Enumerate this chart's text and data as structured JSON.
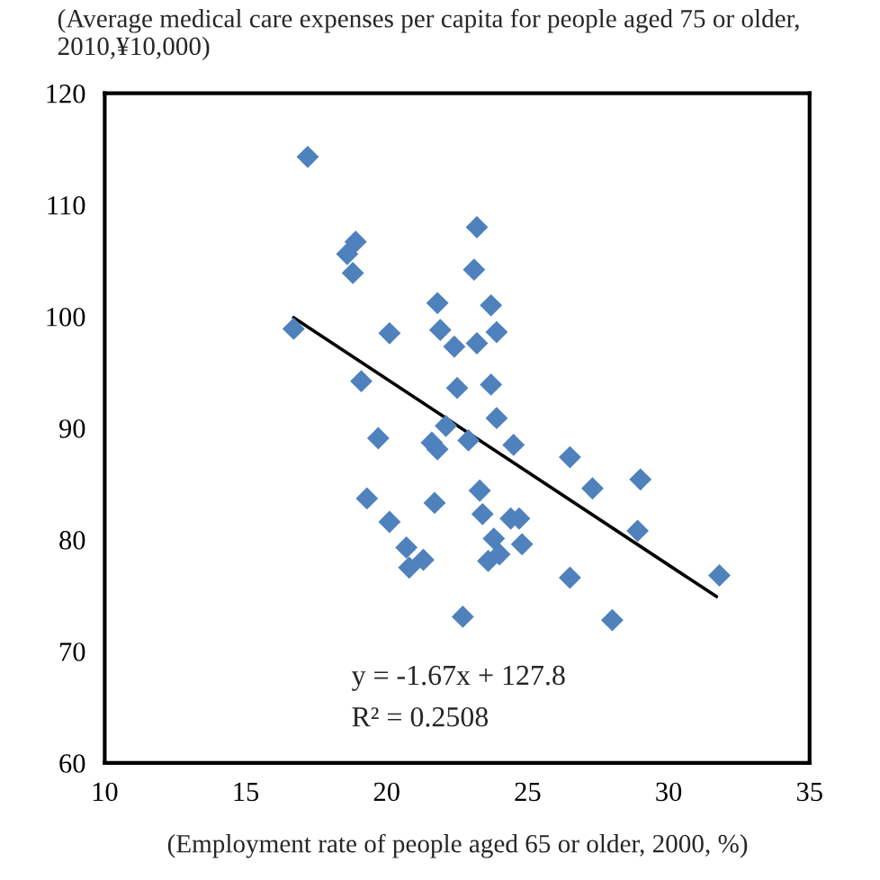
{
  "chart_data": {
    "type": "scatter",
    "ylabel": "(Average medical care expenses per capita for people aged 75 or older, 2010,¥10,000)",
    "xlabel": "(Employment rate of people aged 65 or older, 2000, %)",
    "annotations": [
      "y = -1.67x + 127.8",
      "R² = 0.2508"
    ],
    "xlim": [
      10,
      35
    ],
    "xticks": [
      10,
      15,
      20,
      25,
      30,
      35
    ],
    "ylim": [
      60,
      120
    ],
    "yticks": [
      60,
      70,
      80,
      90,
      100,
      110,
      120
    ],
    "grid": false,
    "legend": false,
    "series": [
      {
        "color": "#4f81bd",
        "marker": "diamond",
        "x": [
          17.2,
          23.2,
          18.9,
          18.6,
          18.8,
          23.1,
          16.7,
          20.1,
          21.8,
          23.7,
          21.9,
          22.4,
          23.2,
          23.9,
          19.1,
          22.5,
          23.7,
          23.9,
          19.7,
          22.1,
          21.6,
          21.8,
          22.9,
          24.5,
          26.5,
          29.0,
          27.3,
          19.3,
          21.7,
          23.3,
          20.1,
          23.4,
          24.4,
          24.7,
          28.9,
          23.8,
          20.7,
          24.8,
          21.3,
          20.8,
          24.0,
          23.6,
          26.5,
          22.7,
          28.0,
          31.8
        ],
        "values": [
          114.3,
          108.0,
          106.7,
          105.6,
          103.9,
          104.2,
          98.9,
          98.5,
          101.2,
          101.0,
          98.8,
          97.3,
          97.6,
          98.6,
          94.2,
          93.6,
          93.9,
          90.9,
          89.1,
          90.2,
          88.7,
          88.1,
          88.9,
          88.5,
          87.4,
          85.4,
          84.6,
          83.7,
          83.3,
          84.4,
          81.6,
          82.3,
          81.9,
          81.9,
          80.8,
          80.1,
          79.3,
          79.6,
          78.2,
          77.5,
          78.7,
          78.1,
          76.6,
          73.1,
          72.8,
          76.8
        ]
      },
      {
        "type": "line",
        "color": "#000000",
        "marker": "none",
        "line_style": "solid",
        "x": [
          16.7,
          31.7
        ],
        "values": [
          99.9,
          74.9
        ]
      }
    ]
  }
}
